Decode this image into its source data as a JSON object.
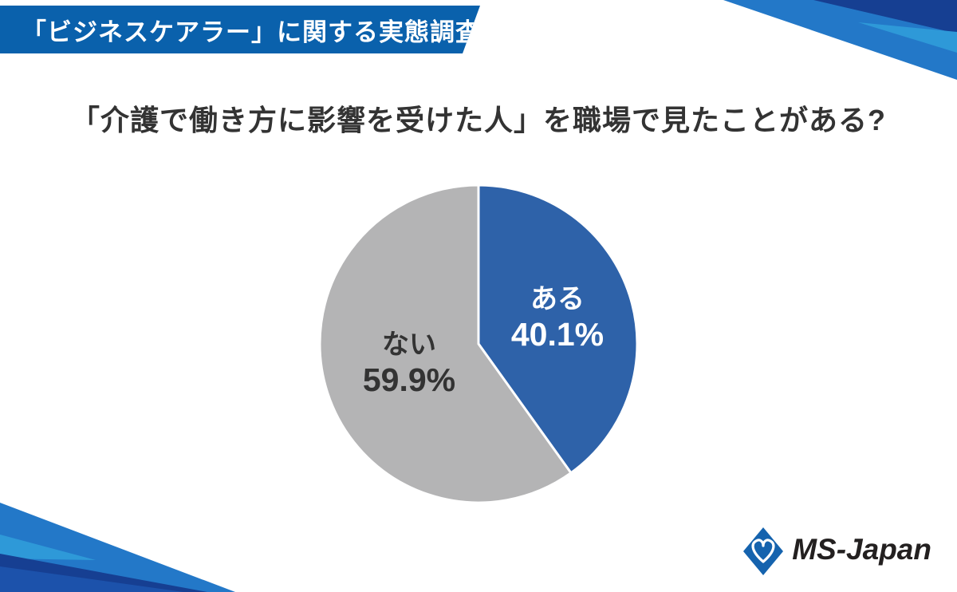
{
  "header": {
    "title": "「ビジネスケアラー」に関する実態調査",
    "bg_color": "#0A61AC",
    "text_color": "#FFFFFF"
  },
  "question": {
    "title": "「介護で働き方に影響を受けた人」を職場で見たことがある?"
  },
  "chart_data": {
    "type": "pie",
    "title": "「介護で働き方に影響を受けた人」を職場で見たことがある?",
    "start_angle_deg": 0,
    "direction": "clockwise",
    "labels_position": "inside",
    "legend": "none",
    "slices": [
      {
        "label": "ある",
        "value": 40.1,
        "display": "40.1%",
        "color": "#2E62A9",
        "text_color": "#FFFFFF"
      },
      {
        "label": "ない",
        "value": 59.9,
        "display": "59.9%",
        "color": "#B4B4B5",
        "text_color": "#333333"
      }
    ]
  },
  "footer": {
    "brand": "MS-Japan"
  },
  "decor_colors": {
    "medium_blue": "#2378C8",
    "light_blue": "#2E99D8",
    "navy": "#163F92",
    "royal_blue": "#1C52AB",
    "logo_blue": "#1563AE"
  }
}
